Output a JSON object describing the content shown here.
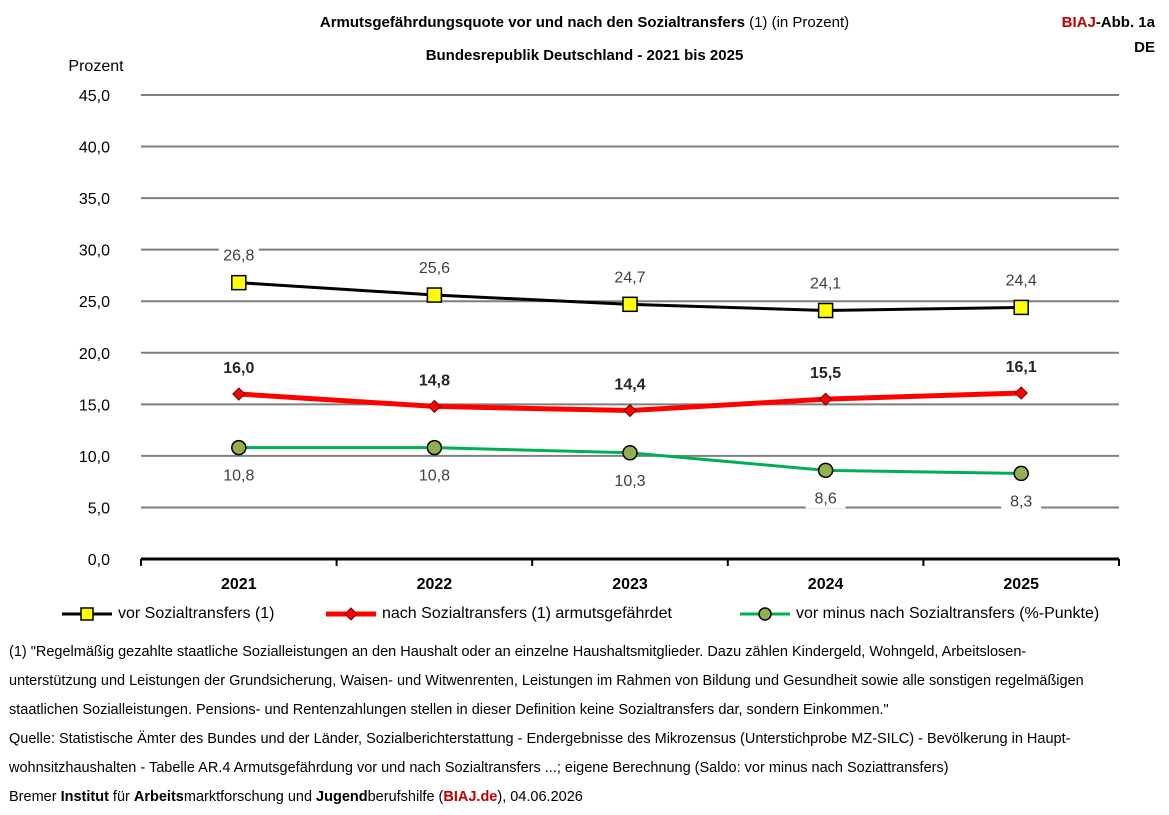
{
  "header": {
    "title_bold": "Armutsgefährdungsquote vor und nach den Sozialtransfers",
    "title_normal": " (1) (in Prozent)",
    "subtitle": "Bundesrepublik Deutschland - 2021 bis 2025",
    "badge_brand": "BIAJ",
    "badge_rest": "-Abb. 1a",
    "badge_line2": "DE"
  },
  "chart_data": {
    "type": "line",
    "ylabel": "Prozent",
    "ylim": [
      0,
      45
    ],
    "ytick_step": 5,
    "ytick_labels": [
      "0,0",
      "5,0",
      "10,0",
      "15,0",
      "20,0",
      "25,0",
      "30,0",
      "35,0",
      "40,0",
      "45,0"
    ],
    "grid": true,
    "categories": [
      "2021",
      "2022",
      "2023",
      "2024",
      "2025"
    ],
    "series": [
      {
        "name": "vor Sozialtransfers (1)",
        "values": [
          26.8,
          25.6,
          24.7,
          24.1,
          24.4
        ],
        "labels": [
          "26,8",
          "25,6",
          "24,7",
          "24,1",
          "24,4"
        ],
        "line_color": "#000000",
        "marker": "square",
        "marker_color": "#ffff00"
      },
      {
        "name": "nach Sozialtransfers (1) armutsgefährdet",
        "values": [
          16.0,
          14.8,
          14.4,
          15.5,
          16.1
        ],
        "labels": [
          "16,0",
          "14,8",
          "14,4",
          "15,5",
          "16,1"
        ],
        "line_color": "#ff0000",
        "marker": "diamond",
        "marker_color": "#ff0000"
      },
      {
        "name": "vor minus nach Sozialtransfers (%-Punkte)",
        "values": [
          10.8,
          10.8,
          10.3,
          8.6,
          8.3
        ],
        "labels": [
          "10,8",
          "10,8",
          "10,3",
          "8,6",
          "8,3"
        ],
        "line_color": "#00b050",
        "marker": "circle",
        "marker_color": "#92b050"
      }
    ],
    "legend_position": "bottom"
  },
  "notes": {
    "footnote_lines": [
      "(1) \"Regelmäßig gezahlte staatliche Sozialleistungen an den Haushalt oder an einzelne Haushaltsmitglieder. Dazu zählen Kindergeld, Wohngeld, Arbeitslosen-",
      "unterstützung und Leistungen der Grundsicherung, Waisen- und Witwenrenten, Leistungen im Rahmen von Bildung und Gesundheit sowie alle sonstigen regelmäßigen",
      "staatlichen Sozialleistungen. Pensions- und Rentenzahlungen stellen in dieser Definition keine Sozialtransfers dar, sondern Einkommen.\"",
      "Quelle: Statistische Ämter des Bundes und der Länder, Sozialberichterstattung - Endergebnisse des Mikrozensus (Unterstichprobe MZ-SILC) - Bevölkerung in Haupt-",
      "wohnsitzhaushalten - Tabelle AR.4 Armutsgefährdung  vor und nach Sozialtransfers  ...; eigene Berechnung (Saldo: vor minus nach Soziattransfers)"
    ],
    "credit": {
      "p1": "Bremer ",
      "p2": "Institut",
      "p3": " für ",
      "p4": "Arbeits",
      "p5": "marktforschung und ",
      "p6": "Jugend",
      "p7": "berufshilfe (",
      "p8": "BIAJ.de",
      "p9": "), 04.06.2026"
    }
  }
}
